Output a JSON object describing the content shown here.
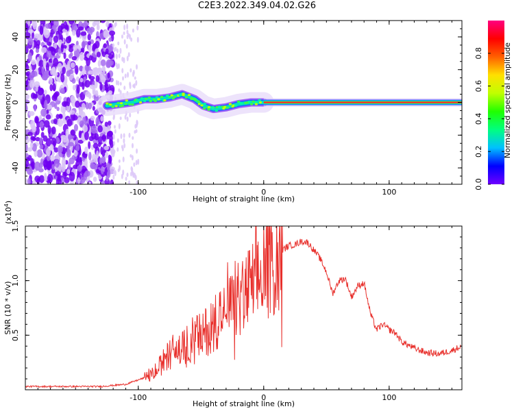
{
  "page_title": "C2E3.2022.349.04.02.G26",
  "chart_data": [
    {
      "type": "heatmap",
      "title": "C2E3.2022.349.04.02.G26",
      "xlabel": "Height of straight line (km)",
      "ylabel": "Frequency (Hz)",
      "xlim": [
        -190,
        158
      ],
      "ylim": [
        -50,
        50
      ],
      "x_ticks": [
        -100,
        0,
        100
      ],
      "y_ticks": [
        -40,
        -20,
        0,
        20,
        40
      ],
      "colorbar": {
        "label": "Normalized spectral amplitude",
        "range": [
          0.0,
          1.0
        ],
        "ticks": [
          0.0,
          0.2,
          0.4,
          0.6,
          0.8
        ],
        "colormap": [
          "#6f00ff",
          "#0000ff",
          "#00c0ff",
          "#00ff80",
          "#20ff00",
          "#c0ff00",
          "#ffe000",
          "#ff6000",
          "#ff0000",
          "#ff0080"
        ]
      },
      "features": {
        "noise_region_x": [
          -190,
          -120
        ],
        "scattered_noise_x": [
          -120,
          -100
        ],
        "signal_trace": [
          [
            -125,
            -2
          ],
          [
            -115,
            -1
          ],
          [
            -105,
            0
          ],
          [
            -95,
            2
          ],
          [
            -85,
            2
          ],
          [
            -75,
            3
          ],
          [
            -65,
            5
          ],
          [
            -55,
            2
          ],
          [
            -48,
            -2
          ],
          [
            -40,
            -4
          ],
          [
            -30,
            -3
          ],
          [
            -20,
            -1
          ],
          [
            -10,
            0
          ],
          [
            0,
            0
          ],
          [
            158,
            0
          ]
        ],
        "strong_signal_x": [
          0,
          158
        ]
      }
    },
    {
      "type": "line",
      "xlabel": "Height of straight line (km)",
      "ylabel": "SNR (10 * v/v)",
      "y_scale_label": "(x10",
      "y_scale_exp": "4",
      "xlim": [
        -190,
        158
      ],
      "ylim": [
        0,
        1.5
      ],
      "x_ticks": [
        -100,
        0,
        100
      ],
      "y_ticks": [
        0.5,
        1.0,
        1.5
      ],
      "color": "#e8302c",
      "series": [
        {
          "x": [
            -190,
            -160,
            -130,
            -110,
            -100,
            -90,
            -85,
            -80,
            -75,
            -70,
            -65,
            -60,
            -55,
            -50,
            -45,
            -40,
            -35,
            -30,
            -25,
            -20,
            -15,
            -10,
            -5,
            0,
            5,
            10,
            15,
            20,
            25,
            30,
            35,
            40,
            45,
            50,
            55,
            60,
            65,
            70,
            75,
            80,
            85,
            90,
            95,
            100,
            105,
            110,
            120,
            130,
            140,
            150,
            158
          ],
          "y": [
            0.03,
            0.03,
            0.03,
            0.05,
            0.09,
            0.13,
            0.18,
            0.26,
            0.33,
            0.38,
            0.37,
            0.42,
            0.5,
            0.48,
            0.55,
            0.62,
            0.7,
            0.66,
            0.78,
            0.82,
            0.88,
            0.94,
            1.0,
            1.05,
            1.15,
            1.25,
            1.28,
            1.32,
            1.33,
            1.36,
            1.35,
            1.28,
            1.2,
            1.08,
            0.88,
            1.0,
            1.02,
            0.85,
            0.95,
            0.98,
            0.7,
            0.55,
            0.6,
            0.55,
            0.52,
            0.44,
            0.38,
            0.34,
            0.33,
            0.36,
            0.4
          ]
        }
      ]
    }
  ]
}
